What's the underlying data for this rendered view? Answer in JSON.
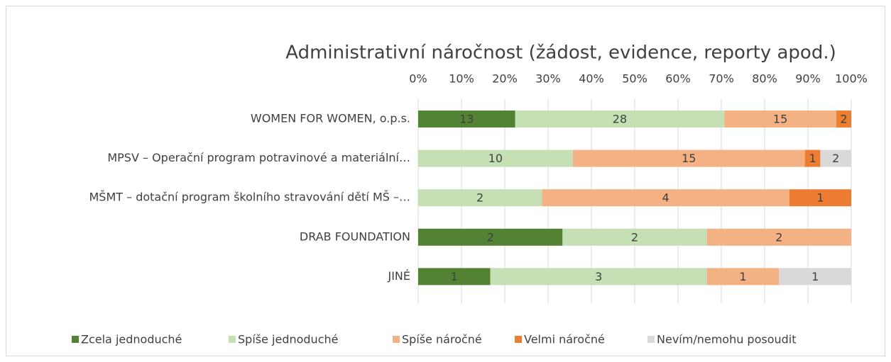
{
  "chart_data": {
    "type": "bar",
    "orientation": "horizontal",
    "stacking": "percent",
    "title": "Administrativní náročnost (žádost, evidence, reporty apod.)",
    "categories": [
      "WOMEN FOR WOMEN, o.p.s.",
      "MPSV – Operační program potravinové a materiální…",
      "MŠMT – dotační program školního stravování dětí MŠ –…",
      "DRAB FOUNDATION",
      "JINÉ"
    ],
    "series": [
      {
        "name": "Zcela jednoduché",
        "color": "#548235",
        "values": [
          13,
          null,
          null,
          2,
          1
        ]
      },
      {
        "name": "Spíše jednoduché",
        "color": "#c5e0b4",
        "values": [
          28,
          10,
          2,
          2,
          3
        ]
      },
      {
        "name": "Spíše náročné",
        "color": "#f4b183",
        "values": [
          15,
          15,
          4,
          2,
          1
        ]
      },
      {
        "name": "Velmi náročné",
        "color": "#ed7d31",
        "values": [
          2,
          1,
          1,
          null,
          null
        ]
      },
      {
        "name": "Nevím/nemohu posoudit",
        "color": "#d9d9d9",
        "values": [
          null,
          2,
          null,
          null,
          1
        ]
      }
    ],
    "xlim": [
      0,
      100
    ],
    "xticks": [
      {
        "value": 0,
        "label": "0%"
      },
      {
        "value": 10,
        "label": "10%"
      },
      {
        "value": 20,
        "label": "20%"
      },
      {
        "value": 30,
        "label": "30%"
      },
      {
        "value": 40,
        "label": "40%"
      },
      {
        "value": 50,
        "label": "50%"
      },
      {
        "value": 60,
        "label": "60%"
      },
      {
        "value": 70,
        "label": "70%"
      },
      {
        "value": 80,
        "label": "80%"
      },
      {
        "value": 90,
        "label": "90%"
      },
      {
        "value": 100,
        "label": "100%"
      }
    ],
    "grid": true,
    "legend": "bottom"
  }
}
